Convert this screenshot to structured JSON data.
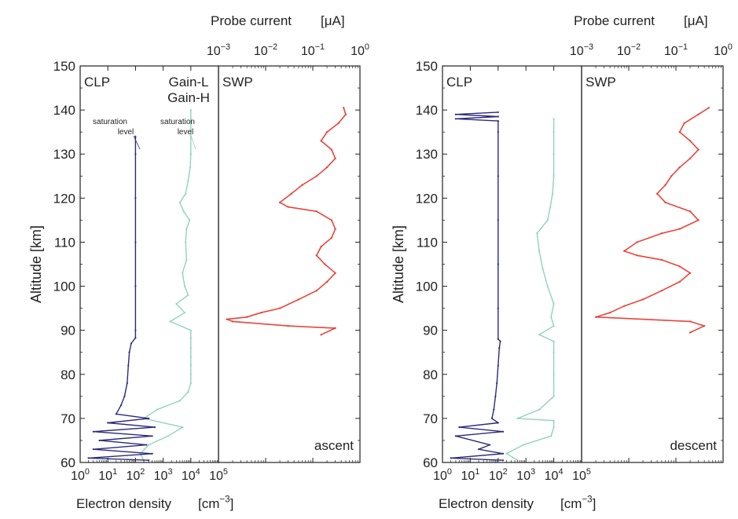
{
  "colors": {
    "gain_l": "#8fd3c0",
    "gain_h": "#2b2a7c",
    "swp": "#e8453a",
    "text": "#222222"
  },
  "chart_data": [
    {
      "type": "line",
      "panel": "ascent",
      "ylabel": "Altitude",
      "yunit": "[km]",
      "ylim": [
        60,
        150
      ],
      "yticks": [
        60,
        70,
        80,
        90,
        100,
        110,
        120,
        130,
        140,
        150
      ],
      "clp": {
        "label": "CLP",
        "xlabel": "Electron density",
        "xunit": "[cm-3]",
        "xscale": "log",
        "xlim": [
          1,
          100000
        ],
        "xtick_exponents": [
          0,
          1,
          2,
          3,
          4,
          5
        ],
        "series": [
          {
            "name": "Gain-L",
            "note": "saturation level",
            "saturation_density": 10000,
            "points": [
              [
                200,
                60.5
              ],
              [
                150,
                62
              ],
              [
                300,
                64
              ],
              [
                1500,
                66
              ],
              [
                5000,
                68
              ],
              [
                200,
                70
              ],
              [
                600,
                72
              ],
              [
                4000,
                74
              ],
              [
                8000,
                76
              ],
              [
                10000,
                78
              ],
              [
                10000,
                80
              ],
              [
                10000,
                82
              ],
              [
                10000,
                84
              ],
              [
                10000,
                86
              ],
              [
                10000,
                88.3
              ],
              [
                10000,
                90
              ],
              [
                1800,
                92
              ],
              [
                6000,
                94
              ],
              [
                3000,
                96
              ],
              [
                8000,
                98
              ],
              [
                6000,
                100
              ],
              [
                5000,
                103
              ],
              [
                7000,
                106
              ],
              [
                6500,
                110
              ],
              [
                7000,
                113
              ],
              [
                9000,
                115
              ],
              [
                5500,
                117
              ],
              [
                4000,
                119
              ],
              [
                6500,
                121
              ],
              [
                8000,
                124
              ],
              [
                9500,
                127
              ],
              [
                10000,
                130
              ],
              [
                10000,
                134
              ],
              [
                10000,
                138
              ],
              [
                10000,
                140
              ]
            ]
          },
          {
            "name": "Gain-H",
            "note": "saturation level",
            "saturation_density": 100,
            "points": [
              [
                300,
                60.5
              ],
              [
                2,
                61
              ],
              [
                400,
                62
              ],
              [
                3,
                63
              ],
              [
                250,
                64
              ],
              [
                5,
                65
              ],
              [
                400,
                66
              ],
              [
                3,
                67
              ],
              [
                500,
                68
              ],
              [
                10,
                69
              ],
              [
                300,
                70
              ],
              [
                20,
                71
              ],
              [
                30,
                73
              ],
              [
                40,
                75
              ],
              [
                50,
                78
              ],
              [
                55,
                82
              ],
              [
                60,
                85
              ],
              [
                70,
                87
              ],
              [
                100,
                88.3
              ],
              [
                100,
                90
              ],
              [
                100,
                100
              ],
              [
                100,
                110
              ],
              [
                100,
                120
              ],
              [
                100,
                130
              ],
              [
                100,
                134
              ]
            ]
          }
        ]
      },
      "swp": {
        "label": "SWP",
        "xlabel": "Probe current",
        "xunit": "[μA]",
        "xscale": "log",
        "xlim": [
          0.001,
          1
        ],
        "xtick_exponents": [
          -3,
          -2,
          -1,
          0
        ],
        "annotation": "ascent",
        "series": [
          {
            "name": "SWP",
            "points": [
              [
                0.15,
                89
              ],
              [
                0.3,
                90.5
              ],
              [
                0.03,
                91
              ],
              [
                0.002,
                92
              ],
              [
                0.0015,
                92.5
              ],
              [
                0.004,
                93
              ],
              [
                0.008,
                94
              ],
              [
                0.02,
                95
              ],
              [
                0.05,
                97
              ],
              [
                0.12,
                99
              ],
              [
                0.2,
                101
              ],
              [
                0.3,
                103
              ],
              [
                0.18,
                105
              ],
              [
                0.12,
                107
              ],
              [
                0.15,
                109
              ],
              [
                0.25,
                111
              ],
              [
                0.3,
                113
              ],
              [
                0.25,
                115
              ],
              [
                0.12,
                117
              ],
              [
                0.03,
                118
              ],
              [
                0.02,
                119
              ],
              [
                0.035,
                121
              ],
              [
                0.06,
                123
              ],
              [
                0.12,
                125
              ],
              [
                0.2,
                127
              ],
              [
                0.3,
                129
              ],
              [
                0.25,
                131
              ],
              [
                0.15,
                133
              ],
              [
                0.2,
                135
              ],
              [
                0.35,
                137
              ],
              [
                0.5,
                139
              ],
              [
                0.45,
                140.5
              ]
            ]
          }
        ]
      }
    },
    {
      "type": "line",
      "panel": "descent",
      "ylabel": "Altitude",
      "yunit": "[km]",
      "ylim": [
        60,
        150
      ],
      "yticks": [
        60,
        70,
        80,
        90,
        100,
        110,
        120,
        130,
        140,
        150
      ],
      "clp": {
        "label": "CLP",
        "xlabel": "Electron density",
        "xunit": "[cm-3]",
        "xscale": "log",
        "xlim": [
          1,
          100000
        ],
        "xtick_exponents": [
          0,
          1,
          2,
          3,
          4,
          5
        ],
        "series": [
          {
            "name": "Gain-L",
            "points": [
              [
                500,
                60.5
              ],
              [
                200,
                62
              ],
              [
                800,
                64
              ],
              [
                8000,
                66
              ],
              [
                10000,
                68
              ],
              [
                10000,
                69.5
              ],
              [
                500,
                70
              ],
              [
                3000,
                72
              ],
              [
                10000,
                75
              ],
              [
                10000,
                80
              ],
              [
                10000,
                85
              ],
              [
                10000,
                87.5
              ],
              [
                3000,
                89
              ],
              [
                10000,
                91
              ],
              [
                8000,
                93
              ],
              [
                10000,
                96
              ],
              [
                6000,
                100
              ],
              [
                4000,
                104
              ],
              [
                3000,
                108
              ],
              [
                2500,
                112
              ],
              [
                6000,
                115
              ],
              [
                7500,
                118
              ],
              [
                9000,
                121
              ],
              [
                10000,
                125
              ],
              [
                10000,
                130
              ],
              [
                10000,
                135
              ],
              [
                10000,
                138
              ]
            ]
          },
          {
            "name": "Gain-H",
            "points": [
              [
                150,
                60.5
              ],
              [
                2,
                61
              ],
              [
                150,
                62
              ],
              [
                20,
                63
              ],
              [
                50,
                64
              ],
              [
                3,
                66
              ],
              [
                150,
                67
              ],
              [
                4,
                68
              ],
              [
                100,
                69
              ],
              [
                60,
                70
              ],
              [
                70,
                72
              ],
              [
                80,
                75
              ],
              [
                90,
                78
              ],
              [
                100,
                82
              ],
              [
                110,
                86
              ],
              [
                120,
                87.5
              ],
              [
                100,
                88
              ],
              [
                100,
                95
              ],
              [
                100,
                105
              ],
              [
                100,
                115
              ],
              [
                100,
                125
              ],
              [
                100,
                135
              ],
              [
                100,
                137.5
              ],
              [
                3,
                138
              ],
              [
                100,
                138.5
              ],
              [
                3,
                139
              ],
              [
                100,
                139.5
              ]
            ]
          }
        ]
      },
      "swp": {
        "label": "SWP",
        "xlabel": "Probe current",
        "xunit": "[μA]",
        "xscale": "log",
        "xlim": [
          0.001,
          1
        ],
        "xtick_exponents": [
          -3,
          -2,
          -1,
          0
        ],
        "annotation": "descent",
        "series": [
          {
            "name": "SWP",
            "points": [
              [
                0.2,
                89.5
              ],
              [
                0.4,
                91
              ],
              [
                0.2,
                92
              ],
              [
                0.002,
                93
              ],
              [
                0.004,
                94
              ],
              [
                0.008,
                95.5
              ],
              [
                0.02,
                97
              ],
              [
                0.05,
                99
              ],
              [
                0.12,
                101
              ],
              [
                0.2,
                103
              ],
              [
                0.12,
                104.5
              ],
              [
                0.05,
                106
              ],
              [
                0.015,
                107
              ],
              [
                0.008,
                108
              ],
              [
                0.015,
                110
              ],
              [
                0.05,
                112
              ],
              [
                0.12,
                113
              ],
              [
                0.3,
                115
              ],
              [
                0.2,
                117
              ],
              [
                0.06,
                119
              ],
              [
                0.04,
                121
              ],
              [
                0.06,
                123
              ],
              [
                0.08,
                125
              ],
              [
                0.12,
                127
              ],
              [
                0.2,
                129
              ],
              [
                0.3,
                131
              ],
              [
                0.2,
                133
              ],
              [
                0.12,
                135
              ],
              [
                0.15,
                137
              ],
              [
                0.3,
                139
              ],
              [
                0.5,
                140.5
              ]
            ]
          }
        ]
      }
    }
  ],
  "legend": {
    "gain_l": "Gain-L",
    "gain_h": "Gain-H",
    "saturation_text_line1": "saturation",
    "saturation_text_line2": "level"
  }
}
